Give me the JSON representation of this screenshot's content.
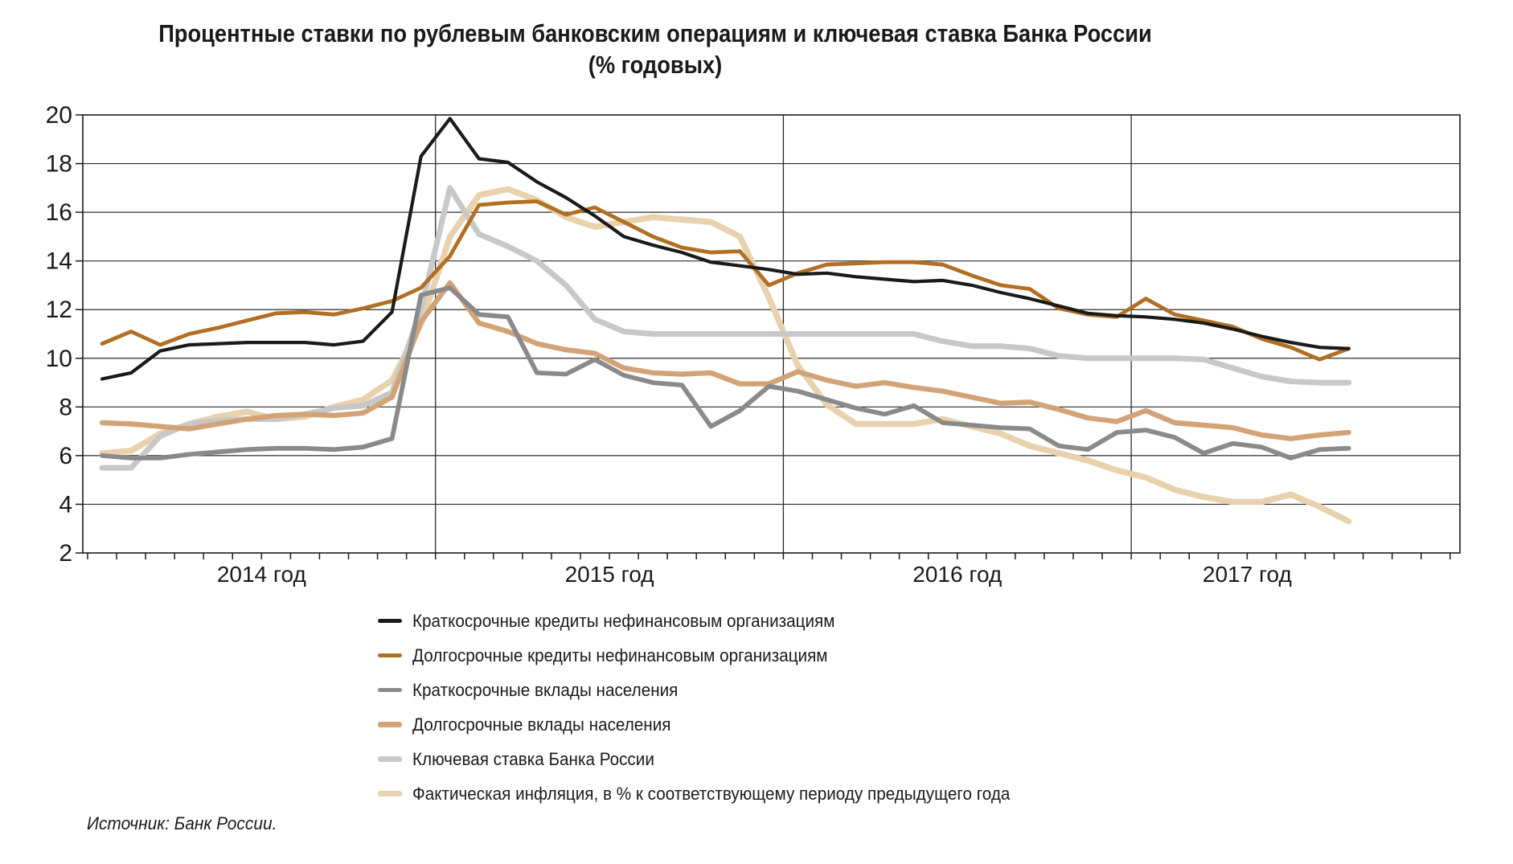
{
  "title": {
    "line1": "Процентные ставки по рублевым банковским операциям и ключевая ставка Банка России",
    "line2": "(% годовых)"
  },
  "source": "Источник: Банк России.",
  "chart_data": {
    "type": "line",
    "ylim": [
      2,
      20
    ],
    "ytick_step": 2,
    "grid": "horizontal gridlines every 2, vertical separators between years, monthly ticks on x-axis",
    "legend_position": "bottom-left",
    "x_unit": "month",
    "x_start": "2014-01",
    "x_end": "2017-08",
    "year_labels": [
      "2014 год",
      "2015 год",
      "2016 год",
      "2017 год"
    ],
    "months_per_year": [
      12,
      12,
      12,
      8
    ],
    "series": [
      {
        "id": "short_loans",
        "name": "Краткосрочные кредиты нефинансовым организациям",
        "color": "#1a1a1a",
        "width": 4.2,
        "values": [
          9.15,
          9.4,
          10.3,
          10.55,
          10.6,
          10.65,
          10.65,
          10.65,
          10.55,
          10.7,
          11.9,
          18.3,
          19.85,
          18.2,
          18.05,
          17.25,
          16.6,
          15.85,
          15.0,
          14.65,
          14.35,
          13.95,
          13.8,
          13.65,
          13.45,
          13.5,
          13.35,
          13.25,
          13.15,
          13.2,
          13.0,
          12.7,
          12.45,
          12.15,
          11.85,
          11.75,
          11.7,
          11.6,
          11.45,
          11.2,
          10.9,
          10.65,
          10.45,
          10.4
        ]
      },
      {
        "id": "long_loans",
        "name": "Долгосрочные кредиты нефинансовым организациям",
        "color": "#b06f22",
        "width": 4.8,
        "values": [
          10.6,
          11.1,
          10.55,
          11.0,
          11.25,
          11.55,
          11.85,
          11.9,
          11.8,
          12.05,
          12.35,
          12.9,
          14.2,
          16.3,
          16.4,
          16.45,
          15.9,
          16.2,
          15.6,
          15.0,
          14.55,
          14.35,
          14.4,
          13.0,
          13.5,
          13.85,
          13.9,
          13.95,
          13.95,
          13.85,
          13.4,
          13.0,
          12.85,
          12.05,
          11.8,
          11.7,
          12.45,
          11.8,
          11.55,
          11.3,
          10.8,
          10.45,
          9.95,
          10.4
        ]
      },
      {
        "id": "short_deposits",
        "name": "Краткосрочные вклады населения",
        "color": "#8a8a8a",
        "width": 5.8,
        "values": [
          6.0,
          5.9,
          5.9,
          6.05,
          6.15,
          6.25,
          6.3,
          6.3,
          6.25,
          6.35,
          6.7,
          12.6,
          12.9,
          11.8,
          11.7,
          9.4,
          9.35,
          9.95,
          9.3,
          9.0,
          8.9,
          7.2,
          7.85,
          8.85,
          8.65,
          8.3,
          7.95,
          7.7,
          8.05,
          7.35,
          7.25,
          7.15,
          7.1,
          6.4,
          6.25,
          6.95,
          7.05,
          6.75,
          6.1,
          6.5,
          6.35,
          5.9,
          6.25,
          6.3
        ]
      },
      {
        "id": "long_deposits",
        "name": "Долгосрочные вклады населения",
        "color": "#d2a376",
        "width": 6.4,
        "values": [
          7.35,
          7.3,
          7.2,
          7.1,
          7.3,
          7.5,
          7.65,
          7.7,
          7.65,
          7.75,
          8.4,
          11.5,
          13.1,
          11.45,
          11.1,
          10.6,
          10.35,
          10.2,
          9.6,
          9.4,
          9.35,
          9.4,
          8.95,
          8.95,
          9.45,
          9.1,
          8.85,
          9.0,
          8.8,
          8.65,
          8.4,
          8.15,
          8.2,
          7.9,
          7.55,
          7.4,
          7.85,
          7.35,
          7.25,
          7.15,
          6.85,
          6.7,
          6.85,
          6.95
        ]
      },
      {
        "id": "key_rate",
        "name": "Ключевая ставка Банка России",
        "color": "#c8c8c8",
        "width": 7.0,
        "values": [
          5.5,
          5.5,
          6.8,
          7.3,
          7.45,
          7.5,
          7.5,
          7.7,
          7.95,
          8.05,
          8.6,
          12.0,
          17.0,
          15.1,
          14.6,
          14.0,
          13.0,
          11.6,
          11.1,
          11.0,
          11.0,
          11.0,
          11.0,
          11.0,
          11.0,
          11.0,
          11.0,
          11.0,
          11.0,
          10.7,
          10.5,
          10.5,
          10.4,
          10.1,
          10.0,
          10.0,
          10.0,
          10.0,
          9.95,
          9.6,
          9.25,
          9.05,
          9.0,
          9.0
        ]
      },
      {
        "id": "inflation",
        "name": "Фактическая инфляция, в % к соответствующему периоду предыдущего года",
        "color": "#e8d2ae",
        "width": 7.6,
        "values": [
          6.1,
          6.2,
          6.9,
          7.3,
          7.6,
          7.8,
          7.5,
          7.6,
          8.0,
          8.3,
          9.1,
          11.4,
          15.0,
          16.7,
          16.95,
          16.5,
          15.8,
          15.4,
          15.6,
          15.8,
          15.7,
          15.6,
          15.0,
          12.5,
          9.7,
          8.1,
          7.3,
          7.3,
          7.3,
          7.5,
          7.2,
          6.9,
          6.4,
          6.1,
          5.8,
          5.4,
          5.1,
          4.6,
          4.3,
          4.1,
          4.1,
          4.4,
          3.9,
          3.3
        ]
      }
    ]
  }
}
